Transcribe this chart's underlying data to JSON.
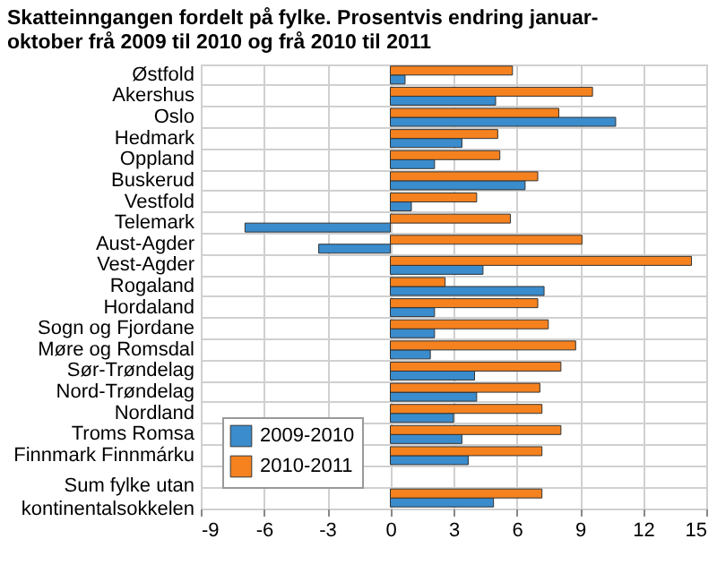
{
  "chart_data": {
    "type": "bar",
    "orientation": "horizontal",
    "title": "Skatteinngangen fordelt på fylke. Prosentvis endring januar-oktober frå 2009 til 2010 og frå 2010 til 2011",
    "categories": [
      "Østfold",
      "Akershus",
      "Oslo",
      "Hedmark",
      "Oppland",
      "Buskerud",
      "Vestfold",
      "Telemark",
      "Aust-Agder",
      "Vest-Agder",
      "Rogaland",
      "Hordaland",
      "Sogn og Fjordane",
      "Møre og Romsdal",
      "Sør-Trøndelag",
      "Nord-Trøndelag",
      "Nordland",
      "Troms Romsa",
      "Finnmark Finnmárku",
      null,
      "Sum fylke utan kontinentalsokkelen"
    ],
    "series": [
      {
        "name": "2009-2010",
        "color": "#3a8ccc",
        "values": [
          0.7,
          5.0,
          10.7,
          3.4,
          2.1,
          6.4,
          1.0,
          -6.9,
          -3.4,
          4.4,
          7.3,
          2.1,
          2.1,
          1.9,
          4.0,
          4.1,
          3.0,
          3.4,
          3.7,
          null,
          4.9
        ]
      },
      {
        "name": "2010-2011",
        "color": "#f5821f",
        "values": [
          5.8,
          9.6,
          8.0,
          5.1,
          5.2,
          7.0,
          4.1,
          5.7,
          9.1,
          14.3,
          2.6,
          7.0,
          7.5,
          8.8,
          8.1,
          7.1,
          7.2,
          8.1,
          7.2,
          null,
          7.2
        ]
      }
    ],
    "xlim": [
      -9,
      15
    ],
    "xticks": [
      -9,
      -6,
      -3,
      0,
      3,
      6,
      9,
      12,
      15
    ],
    "grid": true,
    "legend": "bottom left"
  }
}
